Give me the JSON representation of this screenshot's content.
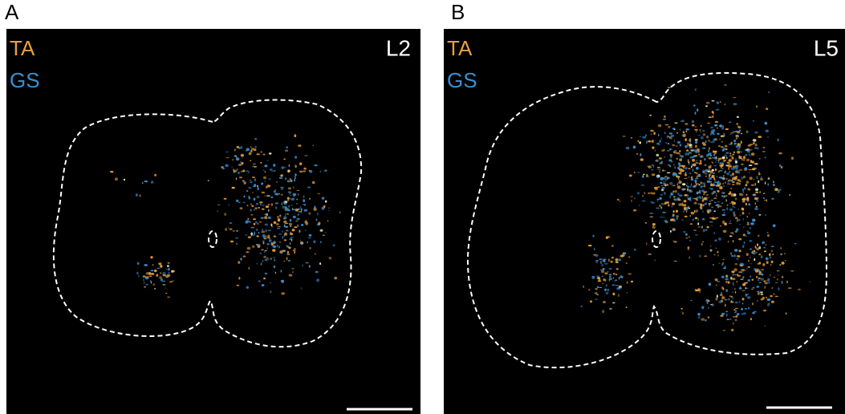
{
  "panels": [
    {
      "label": "A",
      "level": "L2",
      "legend": [
        {
          "text": "TA",
          "color": "#e8a03c"
        },
        {
          "text": "GS",
          "color": "#3a8fd0"
        }
      ]
    },
    {
      "label": "B",
      "level": "L5",
      "legend": [
        {
          "text": "TA",
          "color": "#e8a03c"
        },
        {
          "text": "GS",
          "color": "#3a8fd0"
        }
      ]
    }
  ]
}
